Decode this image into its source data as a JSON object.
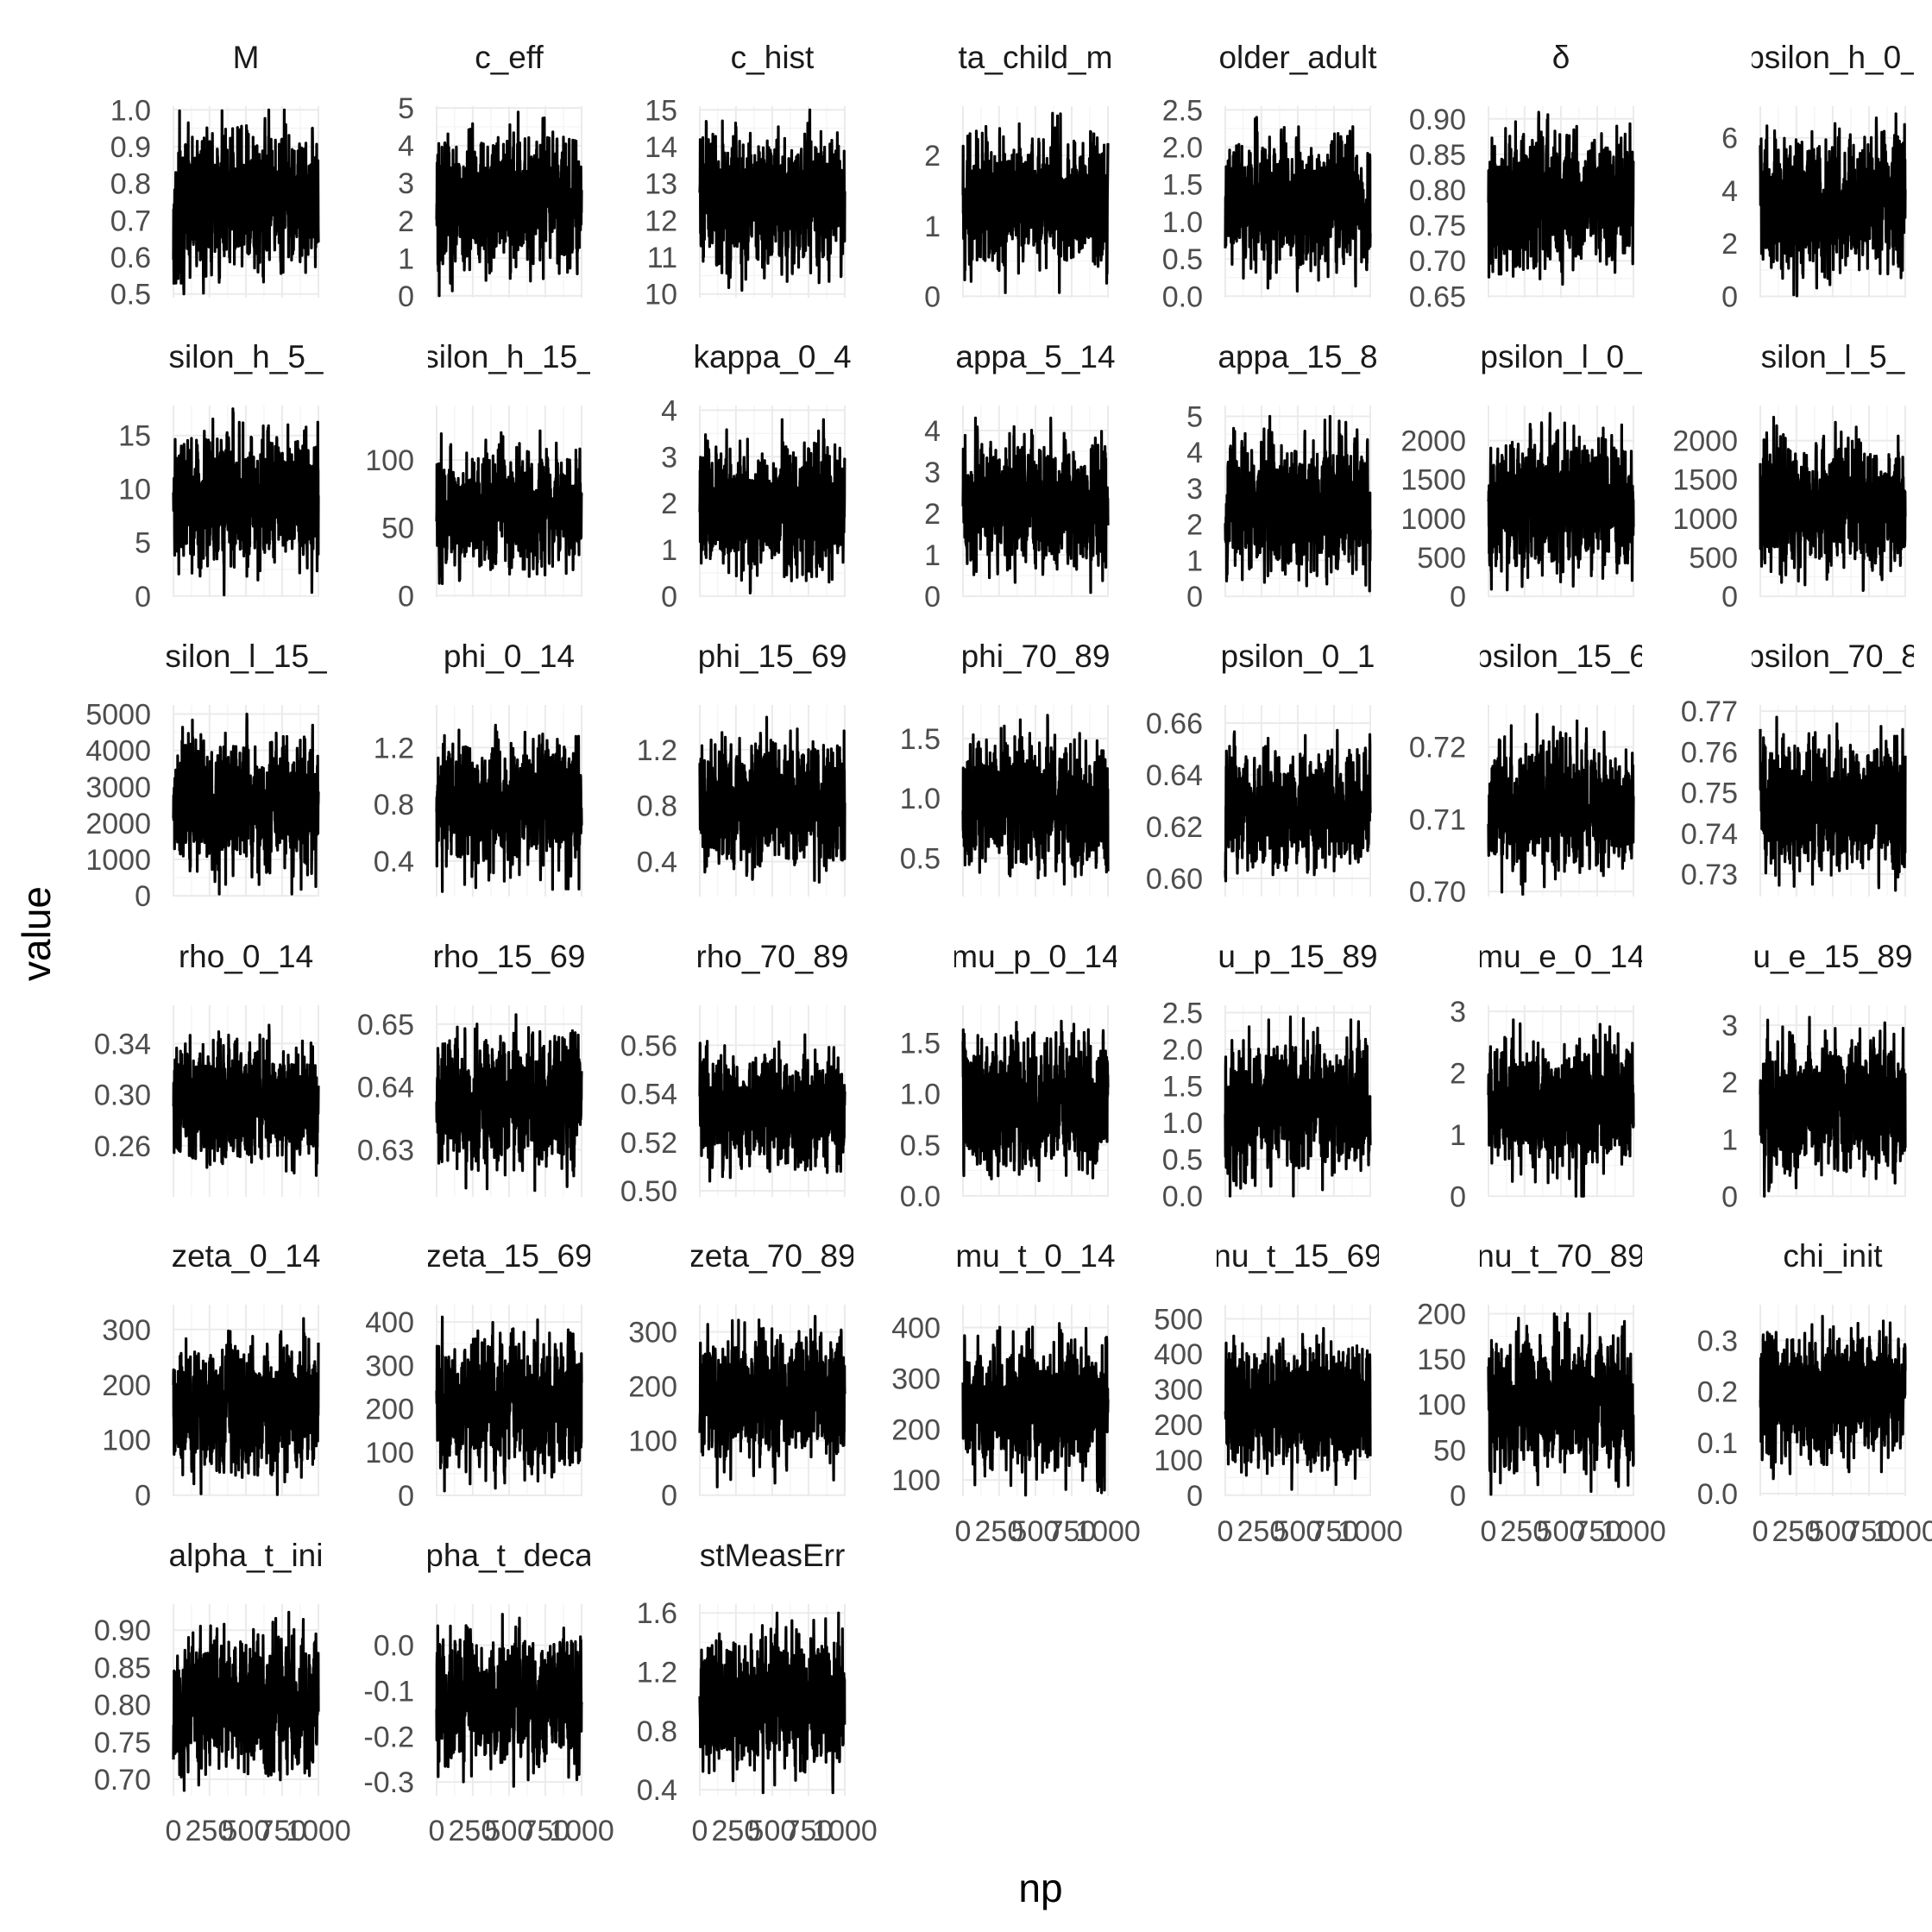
{
  "chart_data": {
    "type": "line",
    "layout": "facet_wrap",
    "xlabel": "np",
    "ylabel": "value",
    "x_range": [
      1,
      1000
    ],
    "x_ticks": [
      0,
      250,
      500,
      750,
      1000
    ],
    "x_tick_labels": [
      "0",
      "250",
      "500",
      "750",
      "1000"
    ],
    "n_points": 1000,
    "grid": true,
    "panels": [
      {
        "label": "M",
        "ylim": [
          0.49,
          1.01
        ],
        "y_ticks": [
          0.5,
          0.6,
          0.7,
          0.8,
          0.9,
          1.0
        ],
        "y_tick_labels": [
          "0.5",
          "0.6",
          "0.7",
          "0.8",
          "0.9",
          "1.0"
        ],
        "value_range": [
          0.5,
          1.0
        ]
      },
      {
        "label": "c_eff",
        "ylim": [
          -0.05,
          5.05
        ],
        "y_ticks": [
          0,
          1,
          2,
          3,
          4,
          5
        ],
        "y_tick_labels": [
          "0",
          "1",
          "2",
          "3",
          "4",
          "5"
        ],
        "value_range": [
          0.0,
          5.0
        ]
      },
      {
        "label": "c_hist",
        "ylim": [
          9.9,
          15.1
        ],
        "y_ticks": [
          10,
          11,
          12,
          13,
          14,
          15
        ],
        "y_tick_labels": [
          "10",
          "11",
          "12",
          "13",
          "14",
          "15"
        ],
        "value_range": [
          10.0,
          15.0
        ]
      },
      {
        "label": "ta_child_m",
        "ylim": [
          -0.02,
          2.7
        ],
        "y_ticks": [
          0,
          1,
          2
        ],
        "y_tick_labels": [
          "0",
          "1",
          "2"
        ],
        "value_range": [
          0.05,
          2.6
        ]
      },
      {
        "label": "older_adult",
        "ylim": [
          -0.02,
          2.55
        ],
        "y_ticks": [
          0,
          0.5,
          1.0,
          1.5,
          2.0,
          2.5
        ],
        "y_tick_labels": [
          "0.0",
          "0.5",
          "1.0",
          "1.5",
          "2.0",
          "2.5"
        ],
        "value_range": [
          0.05,
          2.4
        ]
      },
      {
        "label": "δ",
        "ylim": [
          0.648,
          0.918
        ],
        "y_ticks": [
          0.65,
          0.7,
          0.75,
          0.8,
          0.85,
          0.9
        ],
        "y_tick_labels": [
          "0.65",
          "0.70",
          "0.75",
          "0.80",
          "0.85",
          "0.90"
        ],
        "value_range": [
          0.655,
          0.91
        ]
      },
      {
        "label": "psilon_h_0_",
        "ylim": [
          -0.05,
          7.2
        ],
        "y_ticks": [
          0,
          2,
          4,
          6
        ],
        "y_tick_labels": [
          "0",
          "2",
          "4",
          "6"
        ],
        "value_range": [
          0.02,
          7.0
        ]
      },
      {
        "label": "silon_h_5_",
        "ylim": [
          -0.1,
          17.8
        ],
        "y_ticks": [
          0,
          5,
          10,
          15
        ],
        "y_tick_labels": [
          "0",
          "5",
          "10",
          "15"
        ],
        "value_range": [
          0.1,
          17.5
        ]
      },
      {
        "label": "silon_h_15_",
        "ylim": [
          -1,
          140
        ],
        "y_ticks": [
          0,
          50,
          100
        ],
        "y_tick_labels": [
          "0",
          "50",
          "100"
        ],
        "value_range": [
          1,
          125
        ]
      },
      {
        "label": "kappa_0_4",
        "ylim": [
          -0.02,
          4.1
        ],
        "y_ticks": [
          0,
          1,
          2,
          3,
          4
        ],
        "y_tick_labels": [
          "0",
          "1",
          "2",
          "3",
          "4"
        ],
        "value_range": [
          0.05,
          3.8
        ]
      },
      {
        "label": "appa_5_14",
        "ylim": [
          -0.02,
          4.6
        ],
        "y_ticks": [
          0,
          1,
          2,
          3,
          4
        ],
        "y_tick_labels": [
          "0",
          "1",
          "2",
          "3",
          "4"
        ],
        "value_range": [
          0.05,
          4.3
        ]
      },
      {
        "label": "appa_15_8",
        "ylim": [
          -0.02,
          5.3
        ],
        "y_ticks": [
          0,
          1,
          2,
          3,
          4,
          5
        ],
        "y_tick_labels": [
          "0",
          "1",
          "2",
          "3",
          "4",
          "5"
        ],
        "value_range": [
          0.05,
          5.0
        ]
      },
      {
        "label": "psilon_l_0_",
        "ylim": [
          -10,
          2450
        ],
        "y_ticks": [
          0,
          500,
          1000,
          1500,
          2000
        ],
        "y_tick_labels": [
          "0",
          "500",
          "1000",
          "1500",
          "2000"
        ],
        "value_range": [
          20,
          2350
        ]
      },
      {
        "label": "silon_l_5_",
        "ylim": [
          -10,
          2450
        ],
        "y_ticks": [
          0,
          500,
          1000,
          1500,
          2000
        ],
        "y_tick_labels": [
          "0",
          "500",
          "1000",
          "1500",
          "2000"
        ],
        "value_range": [
          20,
          2300
        ]
      },
      {
        "label": "silon_l_15_",
        "ylim": [
          -20,
          5250
        ],
        "y_ticks": [
          0,
          1000,
          2000,
          3000,
          4000,
          5000
        ],
        "y_tick_labels": [
          "0",
          "1000",
          "2000",
          "3000",
          "4000",
          "5000"
        ],
        "value_range": [
          50,
          5000
        ]
      },
      {
        "label": "phi_0_14",
        "ylim": [
          0.15,
          1.5
        ],
        "y_ticks": [
          0.4,
          0.8,
          1.2
        ],
        "y_tick_labels": [
          "0.4",
          "0.8",
          "1.2"
        ],
        "value_range": [
          0.18,
          1.42
        ]
      },
      {
        "label": "phi_15_69",
        "ylim": [
          0.15,
          1.52
        ],
        "y_ticks": [
          0.4,
          0.8,
          1.2
        ],
        "y_tick_labels": [
          "0.4",
          "0.8",
          "1.2"
        ],
        "value_range": [
          0.2,
          1.45
        ]
      },
      {
        "label": "phi_70_89",
        "ylim": [
          0.18,
          1.78
        ],
        "y_ticks": [
          0.5,
          1.0,
          1.5
        ],
        "y_tick_labels": [
          "0.5",
          "1.0",
          "1.5"
        ],
        "value_range": [
          0.22,
          1.72
        ]
      },
      {
        "label": "psilon_0_1",
        "ylim": [
          0.593,
          0.667
        ],
        "y_ticks": [
          0.6,
          0.62,
          0.64,
          0.66
        ],
        "y_tick_labels": [
          "0.60",
          "0.62",
          "0.64",
          "0.66"
        ],
        "value_range": [
          0.596,
          0.658
        ]
      },
      {
        "label": "psilon_15_6",
        "ylim": [
          0.6993,
          0.7258
        ],
        "y_ticks": [
          0.7,
          0.71,
          0.72
        ],
        "y_tick_labels": [
          "0.70",
          "0.71",
          "0.72"
        ],
        "value_range": [
          0.6995,
          0.7245
        ]
      },
      {
        "label": "psilon_70_8",
        "ylim": [
          0.7245,
          0.7715
        ],
        "y_ticks": [
          0.73,
          0.74,
          0.75,
          0.76,
          0.77
        ],
        "y_tick_labels": [
          "0.73",
          "0.74",
          "0.75",
          "0.76",
          "0.77"
        ],
        "value_range": [
          0.726,
          0.769
        ]
      },
      {
        "label": "rho_0_14",
        "ylim": [
          0.22,
          0.37
        ],
        "y_ticks": [
          0.26,
          0.3,
          0.34
        ],
        "y_tick_labels": [
          "0.26",
          "0.30",
          "0.34"
        ],
        "value_range": [
          0.23,
          0.355
        ]
      },
      {
        "label": "rho_15_69",
        "ylim": [
          0.6225,
          0.653
        ],
        "y_ticks": [
          0.63,
          0.64,
          0.65
        ],
        "y_tick_labels": [
          "0.63",
          "0.64",
          "0.65"
        ],
        "value_range": [
          0.6235,
          0.6515
        ]
      },
      {
        "label": "rho_70_89",
        "ylim": [
          0.4975,
          0.5765
        ],
        "y_ticks": [
          0.5,
          0.52,
          0.54,
          0.56
        ],
        "y_tick_labels": [
          "0.50",
          "0.52",
          "0.54",
          "0.56"
        ],
        "value_range": [
          0.5,
          0.566
        ]
      },
      {
        "label": "mu_p_0_14",
        "ylim": [
          -0.01,
          1.87
        ],
        "y_ticks": [
          0,
          0.5,
          1.0,
          1.5
        ],
        "y_tick_labels": [
          "0.0",
          "0.5",
          "1.0",
          "1.5"
        ],
        "value_range": [
          0.0,
          1.8
        ]
      },
      {
        "label": "u_p_15_89",
        "ylim": [
          -0.01,
          2.6
        ],
        "y_ticks": [
          0,
          0.5,
          1.0,
          1.5,
          2.0,
          2.5
        ],
        "y_tick_labels": [
          "0.0",
          "0.5",
          "1.0",
          "1.5",
          "2.0",
          "2.5"
        ],
        "value_range": [
          0.0,
          2.45
        ]
      },
      {
        "label": "mu_e_0_14",
        "ylim": [
          -0.01,
          3.1
        ],
        "y_ticks": [
          0,
          1,
          2,
          3
        ],
        "y_tick_labels": [
          "0",
          "1",
          "2",
          "3"
        ],
        "value_range": [
          0.0,
          2.95
        ]
      },
      {
        "label": "u_e_15_89",
        "ylim": [
          -0.01,
          3.35
        ],
        "y_ticks": [
          0,
          1,
          2,
          3
        ],
        "y_tick_labels": [
          "0",
          "1",
          "2",
          "3"
        ],
        "value_range": [
          0.0,
          3.2
        ]
      },
      {
        "label": "zeta_0_14",
        "ylim": [
          -2,
          345
        ],
        "y_ticks": [
          0,
          100,
          200,
          300
        ],
        "y_tick_labels": [
          "0",
          "100",
          "200",
          "300"
        ],
        "value_range": [
          1,
          320
        ]
      },
      {
        "label": "zeta_15_69",
        "ylim": [
          -2,
          440
        ],
        "y_ticks": [
          0,
          100,
          200,
          300,
          400
        ],
        "y_tick_labels": [
          "0",
          "100",
          "200",
          "300",
          "400"
        ],
        "value_range": [
          2,
          420
        ]
      },
      {
        "label": "zeta_70_89",
        "ylim": [
          -2,
          350
        ],
        "y_ticks": [
          0,
          100,
          200,
          300
        ],
        "y_tick_labels": [
          "0",
          "100",
          "200",
          "300"
        ],
        "value_range": [
          15,
          340
        ]
      },
      {
        "label": "mu_t_0_14",
        "ylim": [
          68,
          445
        ],
        "y_ticks": [
          100,
          200,
          300,
          400
        ],
        "y_tick_labels": [
          "100",
          "200",
          "300",
          "400"
        ],
        "value_range": [
          70,
          420
        ]
      },
      {
        "label": "nu_t_15_69",
        "ylim": [
          -3,
          540
        ],
        "y_ticks": [
          0,
          100,
          200,
          300,
          400,
          500
        ],
        "y_tick_labels": [
          "0",
          "100",
          "200",
          "300",
          "400",
          "500"
        ],
        "value_range": [
          2,
          510
        ]
      },
      {
        "label": "nu_t_70_89",
        "ylim": [
          -1,
          210
        ],
        "y_ticks": [
          0,
          50,
          100,
          150,
          200
        ],
        "y_tick_labels": [
          "0",
          "50",
          "100",
          "150",
          "200"
        ],
        "value_range": [
          1,
          200
        ]
      },
      {
        "label": "chi_init",
        "ylim": [
          -0.005,
          0.37
        ],
        "y_ticks": [
          0,
          0.1,
          0.2,
          0.3
        ],
        "y_tick_labels": [
          "0.0",
          "0.1",
          "0.2",
          "0.3"
        ],
        "value_range": [
          0.02,
          0.36
        ]
      },
      {
        "label": "alpha_t_ini",
        "ylim": [
          0.678,
          0.935
        ],
        "y_ticks": [
          0.7,
          0.75,
          0.8,
          0.85,
          0.9
        ],
        "y_tick_labels": [
          "0.70",
          "0.75",
          "0.80",
          "0.85",
          "0.90"
        ],
        "value_range": [
          0.685,
          0.925
        ]
      },
      {
        "label": "pha_t_deca",
        "ylim": [
          -0.33,
          0.09
        ],
        "y_ticks": [
          -0.3,
          -0.2,
          -0.1,
          0.0
        ],
        "y_tick_labels": [
          "-0.3",
          "-0.2",
          "-0.1",
          "0.0"
        ],
        "value_range": [
          -0.31,
          0.07
        ]
      },
      {
        "label": "stMeasErr",
        "ylim": [
          0.36,
          1.66
        ],
        "y_ticks": [
          0.4,
          0.8,
          1.2,
          1.6
        ],
        "y_tick_labels": [
          "0.4",
          "0.8",
          "1.2",
          "1.6"
        ],
        "value_range": [
          0.38,
          1.6
        ]
      }
    ]
  }
}
